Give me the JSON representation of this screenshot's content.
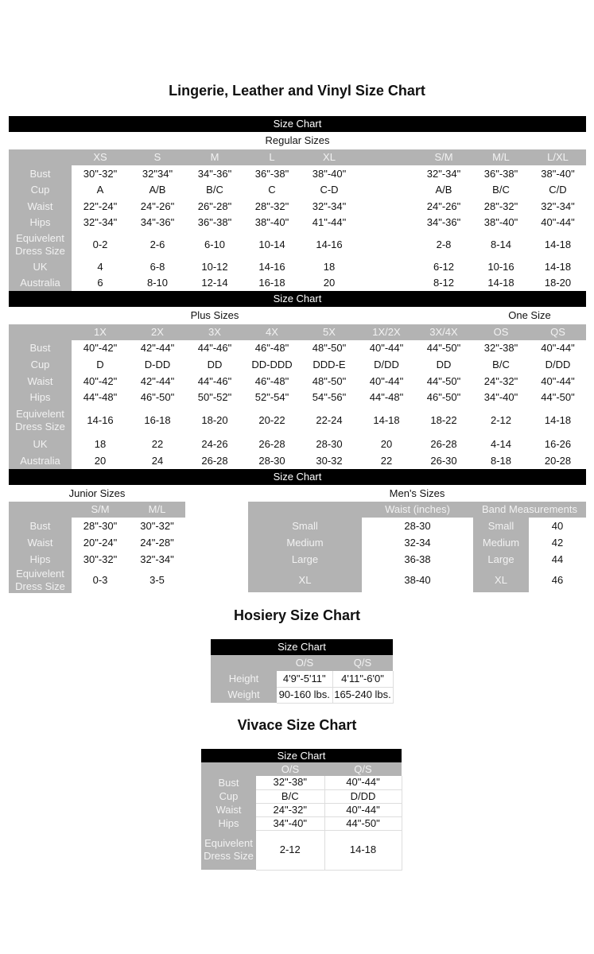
{
  "title": "Lingerie, Leather and Vinyl Size Chart",
  "bar_label": "Size Chart",
  "regular": {
    "heading": "Regular Sizes",
    "columns": [
      "XS",
      "S",
      "M",
      "L",
      "XL",
      "",
      "S/M",
      "M/L",
      "L/XL"
    ],
    "rows": [
      {
        "label": "Bust",
        "values": [
          "30\"-32\"",
          "32\"34\"",
          "34\"-36\"",
          "36\"-38\"",
          "38\"-40\"",
          "",
          "32\"-34\"",
          "36\"-38\"",
          "38\"-40\""
        ]
      },
      {
        "label": "Cup",
        "values": [
          "A",
          "A/B",
          "B/C",
          "C",
          "C-D",
          "",
          "A/B",
          "B/C",
          "C/D"
        ]
      },
      {
        "label": "Waist",
        "values": [
          "22\"-24\"",
          "24\"-26\"",
          "26\"-28\"",
          "28\"-32\"",
          "32\"-34\"",
          "",
          "24\"-26\"",
          "28\"-32\"",
          "32\"-34\""
        ]
      },
      {
        "label": "Hips",
        "values": [
          "32\"-34\"",
          "34\"-36\"",
          "36\"-38\"",
          "38\"-40\"",
          "41\"-44\"",
          "",
          "34\"-36\"",
          "38\"-40\"",
          "40\"-44\""
        ]
      },
      {
        "label": "Equivelent Dress Size",
        "values": [
          "0-2",
          "2-6",
          "6-10",
          "10-14",
          "14-16",
          "",
          "2-8",
          "8-14",
          "14-18"
        ]
      },
      {
        "label": "UK",
        "values": [
          "4",
          "6-8",
          "10-12",
          "14-16",
          "18",
          "",
          "6-12",
          "10-16",
          "14-18"
        ]
      },
      {
        "label": "Australia",
        "values": [
          "6",
          "8-10",
          "12-14",
          "16-18",
          "20",
          "",
          "8-12",
          "14-18",
          "18-20"
        ]
      }
    ]
  },
  "plus": {
    "heading": "Plus Sizes",
    "one_size_heading": "One Size",
    "columns": [
      "1X",
      "2X",
      "3X",
      "4X",
      "5X",
      "1X/2X",
      "3X/4X",
      "OS",
      "QS"
    ],
    "rows": [
      {
        "label": "Bust",
        "values": [
          "40\"-42\"",
          "42\"-44\"",
          "44\"-46\"",
          "46\"-48\"",
          "48\"-50\"",
          "40\"-44\"",
          "44\"-50\"",
          "32\"-38\"",
          "40\"-44\""
        ]
      },
      {
        "label": "Cup",
        "values": [
          "D",
          "D-DD",
          "DD",
          "DD-DDD",
          "DDD-E",
          "D/DD",
          "DD",
          "B/C",
          "D/DD"
        ]
      },
      {
        "label": "Waist",
        "values": [
          "40\"-42\"",
          "42\"-44\"",
          "44\"-46\"",
          "46\"-48\"",
          "48\"-50\"",
          "40\"-44\"",
          "44\"-50\"",
          "24\"-32\"",
          "40\"-44\""
        ]
      },
      {
        "label": "Hips",
        "values": [
          "44\"-48\"",
          "46\"-50\"",
          "50\"-52\"",
          "52\"-54\"",
          "54\"-56\"",
          "44\"-48\"",
          "46\"-50\"",
          "34\"-40\"",
          "44\"-50\""
        ]
      },
      {
        "label": "Equivelent Dress Size",
        "values": [
          "14-16",
          "16-18",
          "18-20",
          "20-22",
          "22-24",
          "14-18",
          "18-22",
          "2-12",
          "14-18"
        ]
      },
      {
        "label": "UK",
        "values": [
          "18",
          "22",
          "24-26",
          "26-28",
          "28-30",
          "20",
          "26-28",
          "4-14",
          "16-26"
        ]
      },
      {
        "label": "Australia",
        "values": [
          "20",
          "24",
          "26-28",
          "28-30",
          "30-32",
          "22",
          "26-30",
          "8-18",
          "20-28"
        ]
      }
    ]
  },
  "junior": {
    "heading": "Junior Sizes",
    "columns": [
      "S/M",
      "M/L"
    ],
    "rows": [
      {
        "label": "Bust",
        "values": [
          "28\"-30\"",
          "30\"-32\""
        ]
      },
      {
        "label": "Waist",
        "values": [
          "20\"-24\"",
          "24\"-28\""
        ]
      },
      {
        "label": "Hips",
        "values": [
          "30\"-32\"",
          "32\"-34\""
        ]
      },
      {
        "label": "Equivelent Dress Size",
        "values": [
          "0-3",
          "3-5"
        ]
      }
    ]
  },
  "mens": {
    "heading": "Men's Sizes",
    "waist_header": "Waist (inches)",
    "band_header": "Band Measurements",
    "rows": [
      {
        "size": "Small",
        "waist": "28-30",
        "band_size": "Small",
        "band": "40"
      },
      {
        "size": "Medium",
        "waist": "32-34",
        "band_size": "Medium",
        "band": "42"
      },
      {
        "size": "Large",
        "waist": "36-38",
        "band_size": "Large",
        "band": "44"
      },
      {
        "size": "XL",
        "waist": "38-40",
        "band_size": "XL",
        "band": "46"
      }
    ]
  },
  "hosiery": {
    "title": "Hosiery Size Chart",
    "bar_label": "Size Chart",
    "columns": [
      "O/S",
      "Q/S"
    ],
    "rows": [
      {
        "label": "Height",
        "values": [
          "4'9\"-5'11\"",
          "4'11\"-6'0\""
        ]
      },
      {
        "label": "Weight",
        "values": [
          "90-160 lbs.",
          "165-240 lbs."
        ]
      }
    ]
  },
  "vivace": {
    "title": "Vivace Size Chart",
    "bar_label": "Size Chart",
    "columns": [
      "O/S",
      "Q/S"
    ],
    "rows": [
      {
        "label": "Bust",
        "values": [
          "32\"-38\"",
          "40\"-44\""
        ]
      },
      {
        "label": "Cup",
        "values": [
          "B/C",
          "D/DD"
        ]
      },
      {
        "label": "Waist",
        "values": [
          "24\"-32\"",
          "40\"-44\""
        ]
      },
      {
        "label": "Hips",
        "values": [
          "34\"-40\"",
          "44\"-50\""
        ]
      },
      {
        "label": "Equivelent Dress Size",
        "values": [
          "2-12",
          "14-18"
        ]
      }
    ]
  },
  "colors": {
    "bar": "#000000",
    "label_fill": "#b3b3b3",
    "label_text": "#f2f2f2"
  }
}
